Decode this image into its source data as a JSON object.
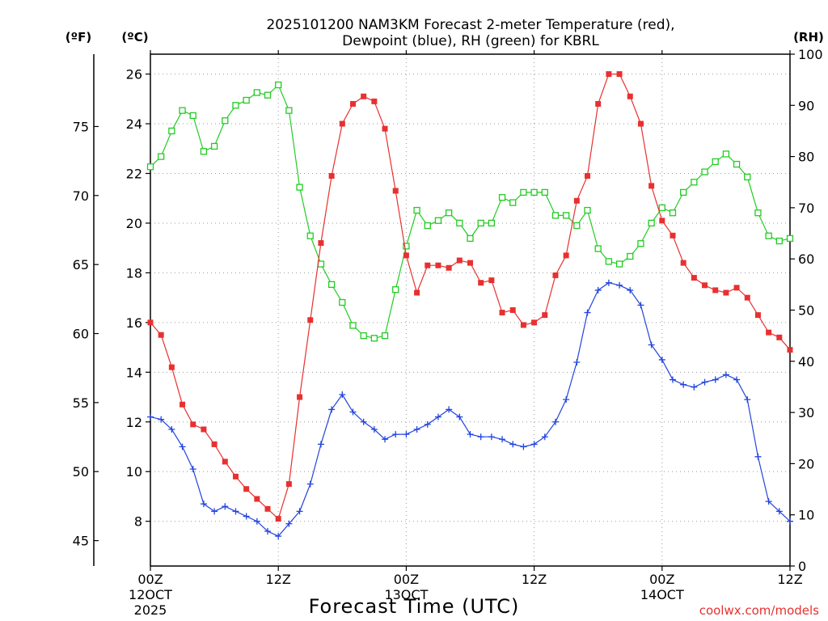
{
  "header": {
    "title_line1": "2025101200 NAM3KM Forecast 2-meter Temperature (red),",
    "title_line2": "Dewpoint (blue), RH (green) for KBRL"
  },
  "axes": {
    "unit_f": "(ºF)",
    "unit_c": "(ºC)",
    "unit_rh": "(RH)",
    "xlabel": "Forecast Time (UTC)",
    "credit": "coolwx.com/models"
  },
  "chart_data": {
    "type": "line",
    "title": "2025101200 NAM3KM Forecast 2-meter Temperature (red), Dewpoint (blue), RH (green) for KBRL",
    "xlabel": "Forecast Time (UTC)",
    "x_hours": [
      0,
      1,
      2,
      3,
      4,
      5,
      6,
      7,
      8,
      9,
      10,
      11,
      12,
      13,
      14,
      15,
      16,
      17,
      18,
      19,
      20,
      21,
      22,
      23,
      24,
      25,
      26,
      27,
      28,
      29,
      30,
      31,
      32,
      33,
      34,
      35,
      36,
      37,
      38,
      39,
      40,
      41,
      42,
      43,
      44,
      45,
      46,
      47,
      48,
      49,
      50,
      51,
      52,
      53,
      54,
      55,
      56,
      57,
      58,
      59,
      60
    ],
    "xlim": [
      0,
      60
    ],
    "x_ticks": [
      {
        "hour": 0,
        "label": "00Z",
        "sub1": "12OCT",
        "sub2": "2025"
      },
      {
        "hour": 12,
        "label": "12Z",
        "sub1": "",
        "sub2": ""
      },
      {
        "hour": 24,
        "label": "00Z",
        "sub1": "13OCT",
        "sub2": ""
      },
      {
        "hour": 36,
        "label": "12Z",
        "sub1": "",
        "sub2": ""
      },
      {
        "hour": 48,
        "label": "00Z",
        "sub1": "14OCT",
        "sub2": ""
      },
      {
        "hour": 60,
        "label": "12Z",
        "sub1": "",
        "sub2": ""
      }
    ],
    "y_celsius": {
      "label": "(ºC)",
      "lim": [
        6.2,
        26.8
      ],
      "ticks": [
        8,
        10,
        12,
        14,
        16,
        18,
        20,
        22,
        24,
        26
      ]
    },
    "y_fahrenheit": {
      "label": "(ºF)",
      "ticks": [
        45,
        50,
        55,
        60,
        65,
        70,
        75
      ]
    },
    "y_rh": {
      "label": "(RH)",
      "lim": [
        0,
        100
      ],
      "ticks": [
        0,
        10,
        20,
        30,
        40,
        50,
        60,
        70,
        80,
        90,
        100
      ]
    },
    "series": [
      {
        "name": "2-meter Temperature",
        "unit": "degC",
        "color": "#e83030",
        "marker": "filled-square",
        "values": [
          16.0,
          15.5,
          14.2,
          12.7,
          11.9,
          11.7,
          11.1,
          10.4,
          9.8,
          9.3,
          8.9,
          8.5,
          8.1,
          9.5,
          13.0,
          16.1,
          19.2,
          21.9,
          24.0,
          24.8,
          25.1,
          24.9,
          23.8,
          21.3,
          18.7,
          17.2,
          18.3,
          18.3,
          18.2,
          18.5,
          18.4,
          17.6,
          17.7,
          16.4,
          16.5,
          15.9,
          16.0,
          16.3,
          17.9,
          18.7,
          20.9,
          21.9,
          24.8,
          26.0,
          26.0,
          25.1,
          24.0,
          21.5,
          20.1,
          19.5,
          18.4,
          17.8,
          17.5,
          17.3,
          17.2,
          17.4,
          17.0,
          16.3,
          15.6,
          15.4,
          14.9
        ]
      },
      {
        "name": "Dewpoint",
        "unit": "degC",
        "color": "#2244dd",
        "marker": "plus",
        "values": [
          12.2,
          12.1,
          11.7,
          11.0,
          10.1,
          8.7,
          8.4,
          8.6,
          8.4,
          8.2,
          8.0,
          7.6,
          7.4,
          7.9,
          8.4,
          9.5,
          11.1,
          12.5,
          13.1,
          12.4,
          12.0,
          11.7,
          11.3,
          11.5,
          11.5,
          11.7,
          11.9,
          12.2,
          12.5,
          12.2,
          11.5,
          11.4,
          11.4,
          11.3,
          11.1,
          11.0,
          11.1,
          11.4,
          12.0,
          12.9,
          14.4,
          16.4,
          17.3,
          17.6,
          17.5,
          17.3,
          16.7,
          15.1,
          14.5,
          13.7,
          13.5,
          13.4,
          13.6,
          13.7,
          13.9,
          13.7,
          12.9,
          10.6,
          8.8,
          8.4,
          8.0
        ]
      },
      {
        "name": "RH",
        "unit": "percent",
        "color": "#22cc22",
        "marker": "open-square",
        "values": [
          78,
          80,
          85,
          89,
          88,
          81,
          82,
          87,
          90,
          91,
          92.5,
          92,
          94,
          89,
          74,
          64.5,
          59,
          55,
          51.5,
          47,
          45,
          44.5,
          45,
          54,
          62.5,
          69.5,
          66.5,
          67.5,
          69,
          67,
          64,
          67,
          67,
          72,
          71,
          73,
          73,
          73,
          68.5,
          68.5,
          66.5,
          69.5,
          62,
          59.5,
          59,
          60.5,
          63,
          67,
          70,
          69,
          73,
          75,
          77,
          79,
          80.5,
          78.5,
          76,
          69,
          64.5,
          63.5,
          64
        ]
      }
    ]
  }
}
